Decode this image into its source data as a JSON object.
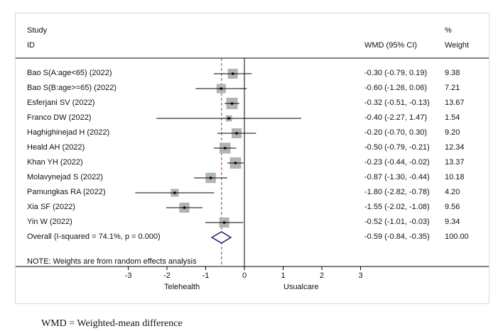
{
  "caption": "WMD = Weighted-mean difference",
  "chart_data": {
    "type": "forest",
    "headers": {
      "study_line1": "Study",
      "study_line2": "ID",
      "effect": "WMD (95% CI)",
      "weight_line1": "%",
      "weight_line2": "Weight"
    },
    "studies": [
      {
        "label": "Bao S(A:age<65) (2022)",
        "est": -0.3,
        "lo": -0.79,
        "hi": 0.19,
        "ci_text": "-0.30 (-0.79, 0.19)",
        "weight": 9.38,
        "weight_text": "9.38"
      },
      {
        "label": "Bao S(B:age>=65) (2022)",
        "est": -0.6,
        "lo": -1.26,
        "hi": 0.06,
        "ci_text": "-0.60 (-1.26, 0.06)",
        "weight": 7.21,
        "weight_text": "7.21"
      },
      {
        "label": "Esferjani SV (2022)",
        "est": -0.32,
        "lo": -0.51,
        "hi": -0.13,
        "ci_text": "-0.32 (-0.51, -0.13)",
        "weight": 13.67,
        "weight_text": "13.67"
      },
      {
        "label": "Franco DW (2022)",
        "est": -0.4,
        "lo": -2.27,
        "hi": 1.47,
        "ci_text": "-0.40 (-2.27, 1.47)",
        "weight": 1.54,
        "weight_text": "1.54"
      },
      {
        "label": "Haghighinejad H (2022)",
        "est": -0.2,
        "lo": -0.7,
        "hi": 0.3,
        "ci_text": "-0.20 (-0.70, 0.30)",
        "weight": 9.2,
        "weight_text": "9.20"
      },
      {
        "label": "Heald AH (2022)",
        "est": -0.5,
        "lo": -0.79,
        "hi": -0.21,
        "ci_text": "-0.50 (-0.79, -0.21)",
        "weight": 12.34,
        "weight_text": "12.34"
      },
      {
        "label": "Khan YH (2022)",
        "est": -0.23,
        "lo": -0.44,
        "hi": -0.02,
        "ci_text": "-0.23 (-0.44, -0.02)",
        "weight": 13.37,
        "weight_text": "13.37"
      },
      {
        "label": "Molavynejad S (2022)",
        "est": -0.87,
        "lo": -1.3,
        "hi": -0.44,
        "ci_text": "-0.87 (-1.30, -0.44)",
        "weight": 10.18,
        "weight_text": "10.18"
      },
      {
        "label": "Pamungkas RA (2022)",
        "est": -1.8,
        "lo": -2.82,
        "hi": -0.78,
        "ci_text": "-1.80 (-2.82, -0.78)",
        "weight": 4.2,
        "weight_text": "4.20"
      },
      {
        "label": "Xia SF (2022)",
        "est": -1.55,
        "lo": -2.02,
        "hi": -1.08,
        "ci_text": "-1.55 (-2.02, -1.08)",
        "weight": 9.56,
        "weight_text": "9.56"
      },
      {
        "label": "Yin W (2022)",
        "est": -0.52,
        "lo": -1.01,
        "hi": -0.03,
        "ci_text": "-0.52 (-1.01, -0.03)",
        "weight": 9.34,
        "weight_text": "9.34"
      }
    ],
    "overall": {
      "label": "Overall  (I-squared = 74.1%, p = 0.000)",
      "est": -0.59,
      "lo": -0.84,
      "hi": -0.35,
      "ci_text": "-0.59 (-0.84, -0.35)",
      "weight_text": "100.00"
    },
    "note": "NOTE: Weights are from random effects analysis",
    "xaxis": {
      "min": -3,
      "max": 3,
      "ticks": [
        -3,
        -2,
        -1,
        0,
        1,
        2,
        3
      ],
      "tick_labels": [
        "-3",
        "-2",
        "-1",
        "0",
        "1",
        "2",
        "3"
      ]
    },
    "xlabel_left": "Telehealth",
    "xlabel_right": "Usualcare",
    "null_line": 0,
    "colors": {
      "box": "#b3b3b3",
      "diamond": "#1f1a6b",
      "overall_line": "#9b2c4a",
      "line": "#000000"
    }
  }
}
